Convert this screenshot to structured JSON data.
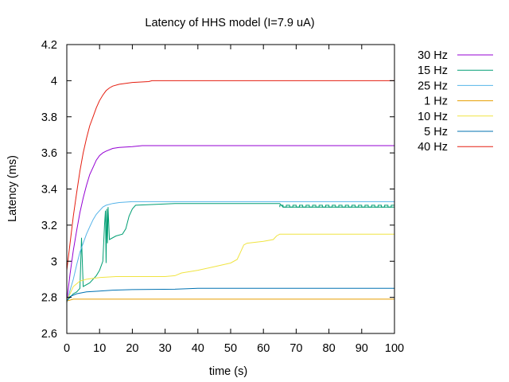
{
  "chart_data": {
    "type": "line",
    "title": "Latency of HHS model (I=7.9 uA)",
    "xlabel": "time (s)",
    "ylabel": "Latency (ms)",
    "xlim": [
      0,
      100
    ],
    "ylim": [
      2.6,
      4.2
    ],
    "x_ticks": [
      "0",
      "10",
      "20",
      "30",
      "40",
      "50",
      "60",
      "70",
      "80",
      "90",
      "100"
    ],
    "y_ticks": [
      "2.6",
      "2.8",
      "3",
      "3.2",
      "3.4",
      "3.6",
      "3.8",
      "4",
      "4.2"
    ],
    "grid": false,
    "legend_position": "outside-right",
    "series": [
      {
        "name": "30 Hz",
        "color": "#9400d3",
        "points": [
          [
            0,
            2.78
          ],
          [
            1,
            2.93
          ],
          [
            2,
            3.06
          ],
          [
            3,
            3.17
          ],
          [
            4,
            3.27
          ],
          [
            5,
            3.35
          ],
          [
            6,
            3.42
          ],
          [
            7,
            3.48
          ],
          [
            8,
            3.52
          ],
          [
            9,
            3.56
          ],
          [
            10,
            3.585
          ],
          [
            11,
            3.6
          ],
          [
            12,
            3.61
          ],
          [
            14,
            3.625
          ],
          [
            16,
            3.63
          ],
          [
            20,
            3.635
          ],
          [
            23,
            3.64
          ],
          [
            100,
            3.64
          ]
        ]
      },
      {
        "name": "15 Hz",
        "color": "#009e73",
        "points": [
          [
            0,
            2.78
          ],
          [
            1,
            2.8
          ],
          [
            2,
            2.82
          ],
          [
            3,
            2.83
          ],
          [
            4,
            2.85
          ],
          [
            4.5,
            3.13
          ],
          [
            5,
            2.86
          ],
          [
            7,
            2.88
          ],
          [
            9,
            2.92
          ],
          [
            10,
            2.95
          ],
          [
            11,
            3.0
          ],
          [
            11.5,
            3.2
          ],
          [
            11.8,
            3.28
          ],
          [
            12,
            2.99
          ],
          [
            12.2,
            3.29
          ],
          [
            12.4,
            3.1
          ],
          [
            12.6,
            3.3
          ],
          [
            13,
            3.12
          ],
          [
            15,
            3.14
          ],
          [
            17,
            3.15
          ],
          [
            18,
            3.18
          ],
          [
            19,
            3.25
          ],
          [
            20,
            3.29
          ],
          [
            21,
            3.31
          ],
          [
            33,
            3.32
          ],
          [
            65,
            3.32
          ],
          [
            66,
            3.3
          ],
          [
            100,
            3.3
          ]
        ]
      },
      {
        "name": "25 Hz",
        "color": "#56b4e9",
        "points": [
          [
            0,
            2.77
          ],
          [
            1,
            2.84
          ],
          [
            2,
            2.9
          ],
          [
            3,
            2.98
          ],
          [
            4,
            3.05
          ],
          [
            5,
            3.1
          ],
          [
            6,
            3.15
          ],
          [
            7,
            3.19
          ],
          [
            8,
            3.23
          ],
          [
            9,
            3.26
          ],
          [
            10,
            3.28
          ],
          [
            11,
            3.3
          ],
          [
            12,
            3.31
          ],
          [
            14,
            3.32
          ],
          [
            16,
            3.325
          ],
          [
            20,
            3.33
          ],
          [
            100,
            3.33
          ]
        ]
      },
      {
        "name": "1 Hz",
        "color": "#e69f00",
        "points": [
          [
            0,
            2.78
          ],
          [
            2,
            2.79
          ],
          [
            100,
            2.79
          ]
        ]
      },
      {
        "name": "10 Hz",
        "color": "#f0e442",
        "points": [
          [
            0,
            2.78
          ],
          [
            1,
            2.82
          ],
          [
            2,
            2.86
          ],
          [
            4,
            2.89
          ],
          [
            6,
            2.9
          ],
          [
            8,
            2.905
          ],
          [
            10,
            2.91
          ],
          [
            15,
            2.915
          ],
          [
            30,
            2.915
          ],
          [
            33,
            2.92
          ],
          [
            35,
            2.935
          ],
          [
            40,
            2.95
          ],
          [
            45,
            2.97
          ],
          [
            50,
            2.99
          ],
          [
            52,
            3.01
          ],
          [
            53,
            3.05
          ],
          [
            54,
            3.09
          ],
          [
            55,
            3.1
          ],
          [
            60,
            3.11
          ],
          [
            63,
            3.12
          ],
          [
            64,
            3.14
          ],
          [
            65,
            3.15
          ],
          [
            100,
            3.15
          ]
        ]
      },
      {
        "name": "5 Hz",
        "color": "#0072b2",
        "points": [
          [
            0,
            2.78
          ],
          [
            1,
            2.805
          ],
          [
            3,
            2.82
          ],
          [
            6,
            2.83
          ],
          [
            10,
            2.835
          ],
          [
            14,
            2.84
          ],
          [
            20,
            2.843
          ],
          [
            33,
            2.845
          ],
          [
            40,
            2.85
          ],
          [
            100,
            2.85
          ]
        ]
      },
      {
        "name": "40 Hz",
        "color": "#e51e10",
        "points": [
          [
            0,
            2.95
          ],
          [
            1,
            3.1
          ],
          [
            2,
            3.25
          ],
          [
            3,
            3.38
          ],
          [
            4,
            3.5
          ],
          [
            5,
            3.6
          ],
          [
            6,
            3.68
          ],
          [
            7,
            3.75
          ],
          [
            8,
            3.8
          ],
          [
            9,
            3.85
          ],
          [
            10,
            3.89
          ],
          [
            11,
            3.92
          ],
          [
            12,
            3.945
          ],
          [
            13,
            3.96
          ],
          [
            14,
            3.97
          ],
          [
            16,
            3.98
          ],
          [
            18,
            3.985
          ],
          [
            20,
            3.99
          ],
          [
            25,
            3.995
          ],
          [
            26,
            4.0
          ],
          [
            100,
            4.0
          ]
        ]
      }
    ]
  }
}
